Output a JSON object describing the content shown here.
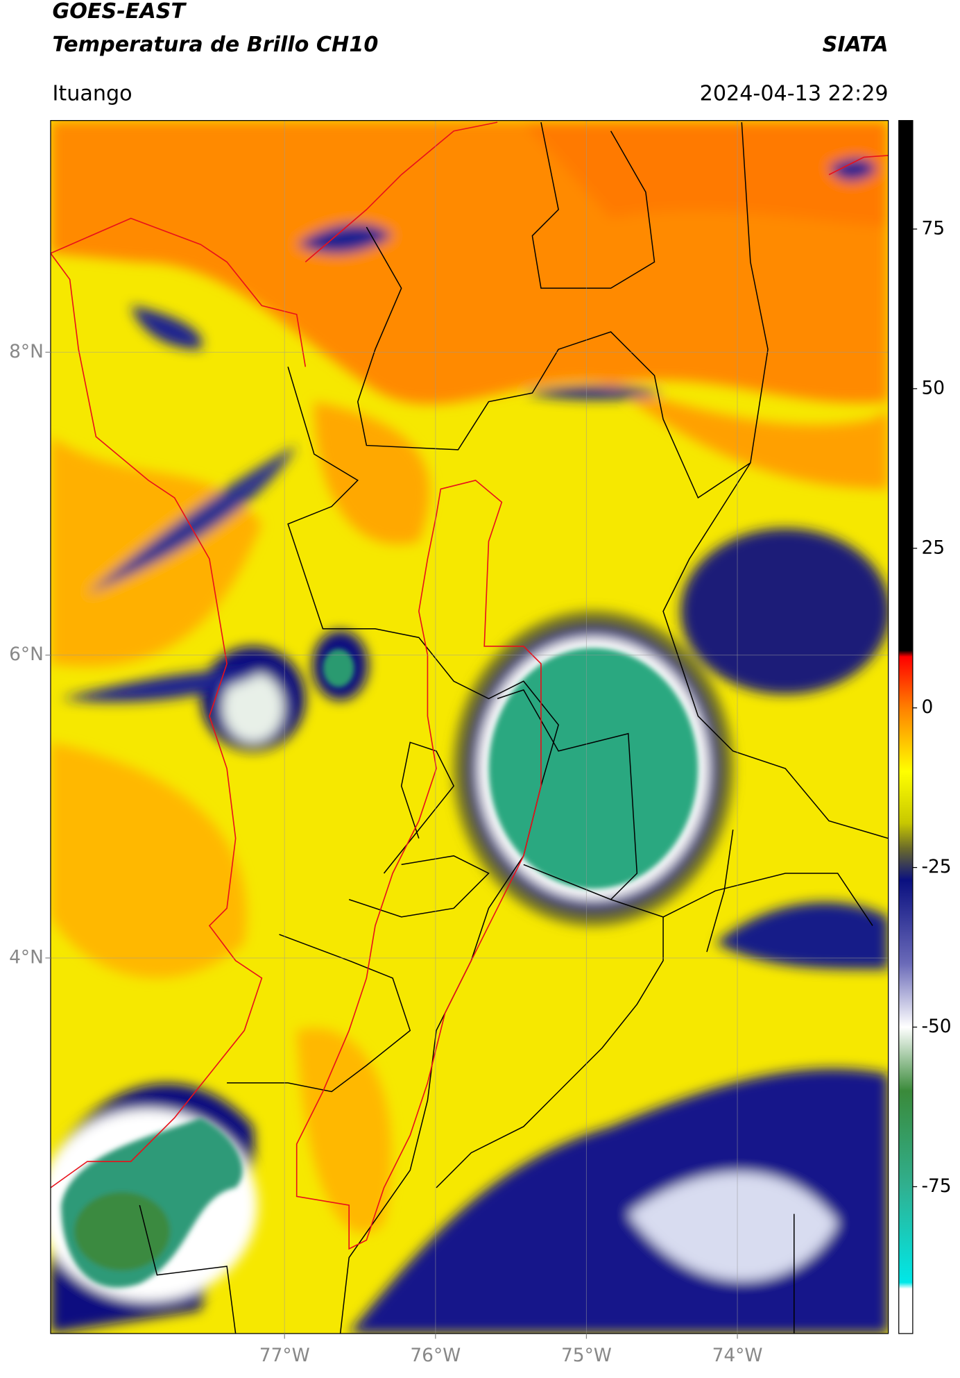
{
  "chart_data": {
    "type": "map",
    "title": "GOES-EAST",
    "subtitle": "Temperatura de Brillo CH10",
    "source": "SIATA",
    "location": "Ituango",
    "datetime": "2024-04-13 22:29",
    "xlim": [
      -78.55,
      -73.0
    ],
    "ylim": [
      1.52,
      9.53
    ],
    "xticks": [
      {
        "value": -77,
        "label": "77°W"
      },
      {
        "value": -76,
        "label": "76°W"
      },
      {
        "value": -75,
        "label": "75°W"
      },
      {
        "value": -74,
        "label": "74°W"
      }
    ],
    "yticks": [
      {
        "value": 8,
        "label": "8°N"
      },
      {
        "value": 6,
        "label": "6°N"
      },
      {
        "value": 4,
        "label": "4°N"
      }
    ],
    "grid": true,
    "colorbar": {
      "clim": [
        -98,
        92
      ],
      "ticks": [
        75,
        50,
        25,
        0,
        -25,
        -50,
        -75
      ],
      "colormap": [
        {
          "value": 92,
          "color": "#000000"
        },
        {
          "value": 9,
          "color": "#000000"
        },
        {
          "value": 8,
          "color": "#ff0000"
        },
        {
          "value": 0,
          "color": "#ff8000"
        },
        {
          "value": -10,
          "color": "#ffff00"
        },
        {
          "value": -18,
          "color": "#c8c800"
        },
        {
          "value": -22,
          "color": "#6b6b2a"
        },
        {
          "value": -27,
          "color": "#0a1080"
        },
        {
          "value": -40,
          "color": "#6a6ab8"
        },
        {
          "value": -50,
          "color": "#ffffff"
        },
        {
          "value": -60,
          "color": "#3a8a3a"
        },
        {
          "value": -75,
          "color": "#30b090"
        },
        {
          "value": -90,
          "color": "#00e8e8"
        },
        {
          "value": -91,
          "color": "#ffffff"
        },
        {
          "value": -98,
          "color": "#ffffff"
        }
      ]
    }
  }
}
